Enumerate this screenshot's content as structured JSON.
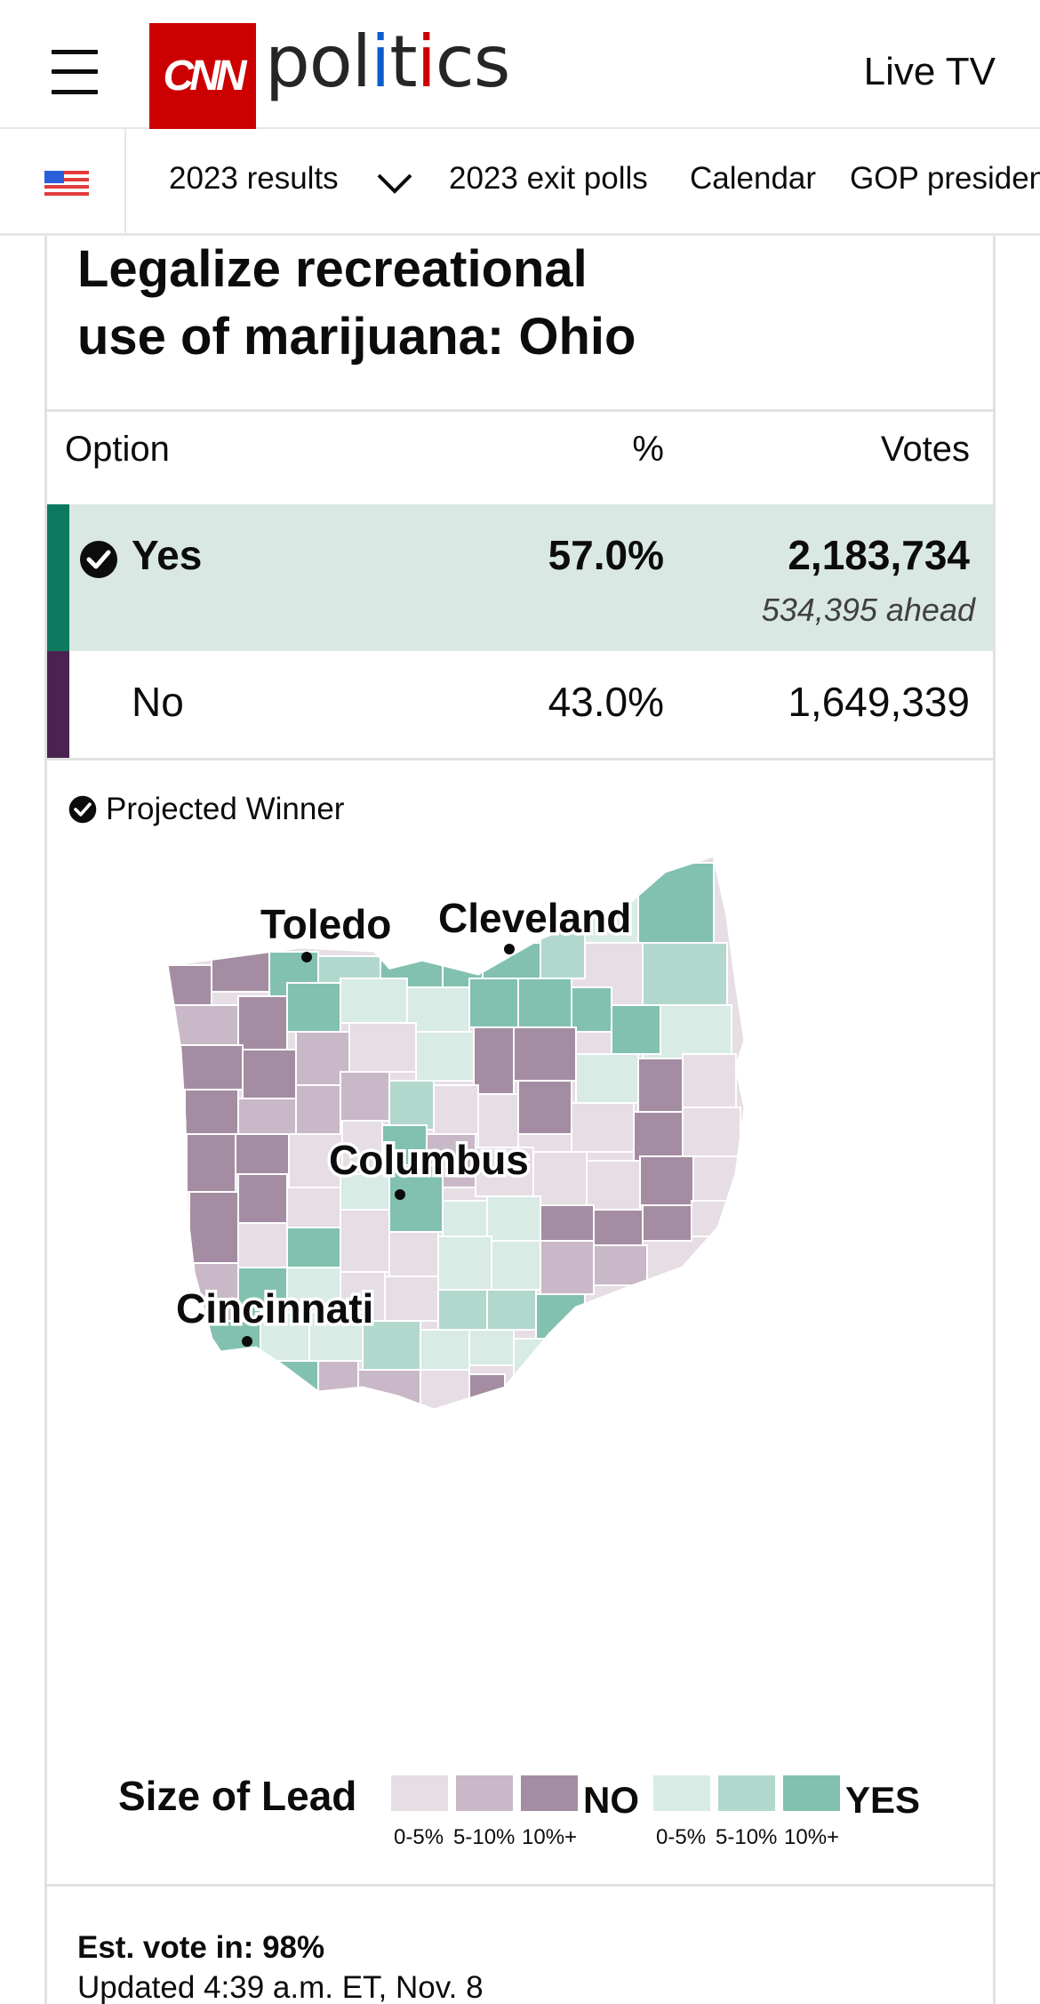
{
  "header": {
    "logo": "CNN",
    "section": "politics",
    "live_tv": "Live TV"
  },
  "subnav": {
    "items": [
      "2023 results",
      "2023 exit polls",
      "Calendar",
      "GOP presiden"
    ]
  },
  "race": {
    "title_line1": "Legalize recreational",
    "title_line2": "use of marijuana: Ohio",
    "columns": {
      "option": "Option",
      "pct": "%",
      "votes": "Votes"
    },
    "rows": [
      {
        "label": "Yes",
        "pct": "57.0%",
        "votes": "2,183,734",
        "margin": "534,395 ahead",
        "winner": true,
        "color": "#0d7a5f"
      },
      {
        "label": "No",
        "pct": "43.0%",
        "votes": "1,649,339",
        "winner": false,
        "color": "#4b2350"
      }
    ],
    "projected_winner_label": "Projected Winner"
  },
  "map": {
    "cities": [
      "Toledo",
      "Cleveland",
      "Columbus",
      "Cincinnati"
    ],
    "colors": {
      "no_low": "#e6dde5",
      "no_mid": "#c9b8c7",
      "no_high": "#a48da2",
      "yes_low": "#d8ebe5",
      "yes_mid": "#b2d8cd",
      "yes_high": "#82c1b0"
    }
  },
  "legend": {
    "title": "Size of Lead",
    "no_label": "NO",
    "yes_label": "YES",
    "ranges": [
      "0-5%",
      "5-10%",
      "10%+"
    ]
  },
  "footer": {
    "est_vote": "Est. vote in: 98%",
    "updated": "Updated 4:39 a.m. ET, Nov. 8"
  }
}
